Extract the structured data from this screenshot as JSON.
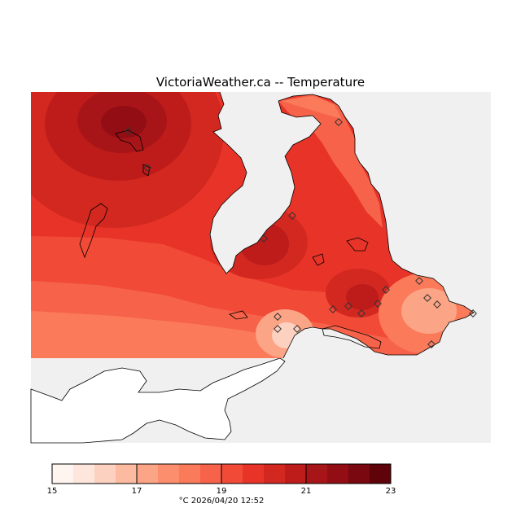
{
  "title": "VictoriaWeather.ca -- Temperature",
  "legend": {
    "tick_labels": [
      "15",
      "17",
      "19",
      "21",
      "23"
    ],
    "min": 15,
    "max": 23,
    "bands": 16,
    "colors": [
      "#fff5f0",
      "#fee6dc",
      "#fdd1c0",
      "#fcbba1",
      "#fca486",
      "#fc8e6e",
      "#fb7a5a",
      "#f6634a",
      "#f14a37",
      "#e83428",
      "#d22820",
      "#be1c1b",
      "#a81518",
      "#920e14",
      "#7a0810",
      "#5f0209"
    ]
  },
  "footer": "°C  2026/04/20 12:52",
  "colors": {
    "water": "#f0f0f0",
    "land_outside": "#ffffff",
    "coastline": "#000000"
  }
}
